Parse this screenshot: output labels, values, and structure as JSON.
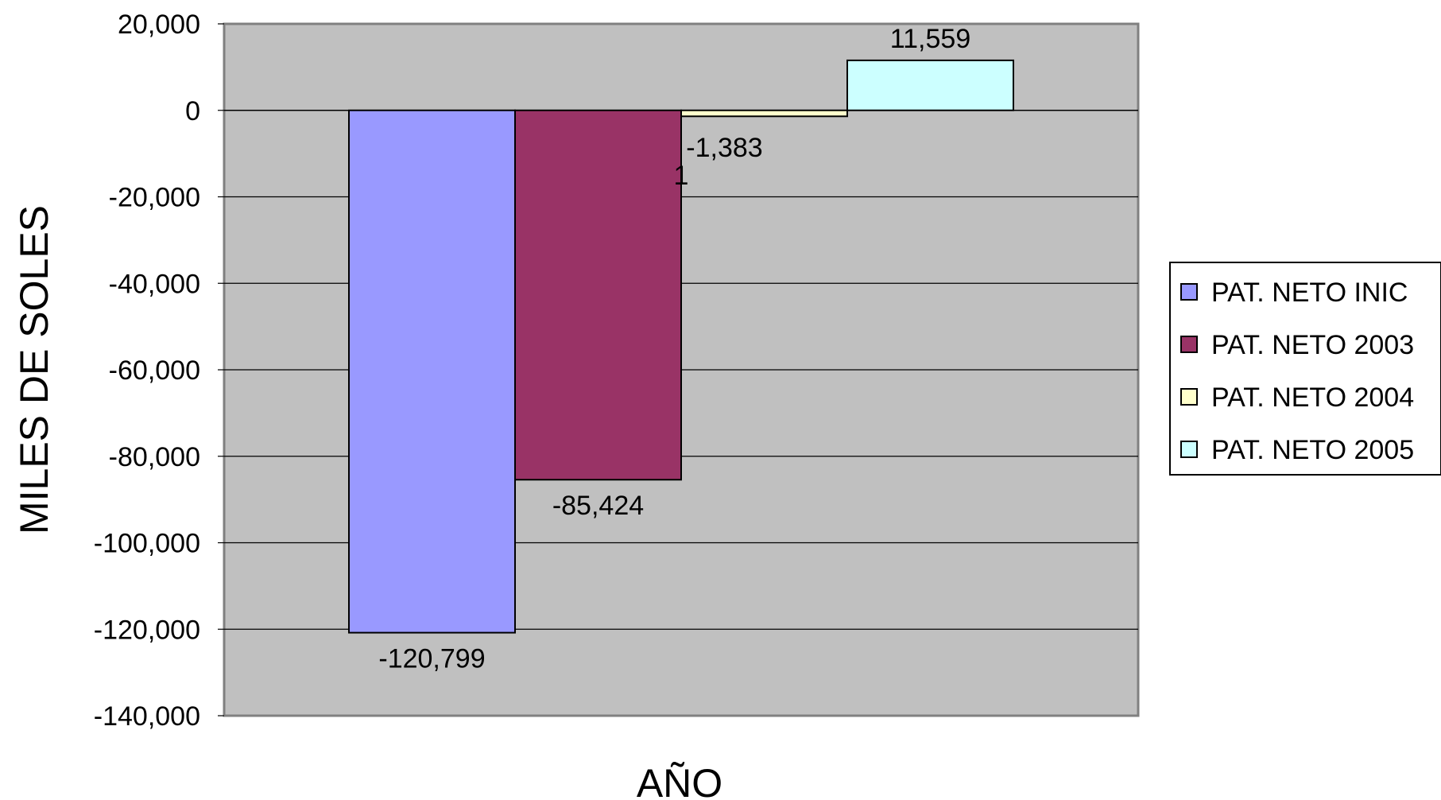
{
  "chart_data": {
    "type": "bar",
    "categories": [
      "1"
    ],
    "series": [
      {
        "name": "PAT. NETO INIC",
        "values": [
          -120799
        ],
        "label": "-120,799",
        "color": "#9999ff"
      },
      {
        "name": "PAT. NETO 2003",
        "values": [
          -85424
        ],
        "label": "-85,424",
        "color": "#993366"
      },
      {
        "name": "PAT. NETO 2004",
        "values": [
          -1383
        ],
        "label": "-1,383",
        "color": "#ffffcc"
      },
      {
        "name": "PAT. NETO 2005",
        "values": [
          11559
        ],
        "label": "11,559",
        "color": "#ccffff"
      }
    ],
    "xlabel": "AÑO",
    "ylabel": "MILES DE SOLES",
    "ylim": [
      -140000,
      20000
    ],
    "yticks": [
      20000,
      0,
      -20000,
      -40000,
      -60000,
      -80000,
      -100000,
      -120000,
      -140000
    ],
    "ytick_labels": [
      "20,000",
      "0",
      "-20,000",
      "-40,000",
      "-60,000",
      "-80,000",
      "-100,000",
      "-120,000",
      "-140,000"
    ],
    "grid": true,
    "plot_background": "#c0c0c0",
    "legend_position": "right"
  }
}
